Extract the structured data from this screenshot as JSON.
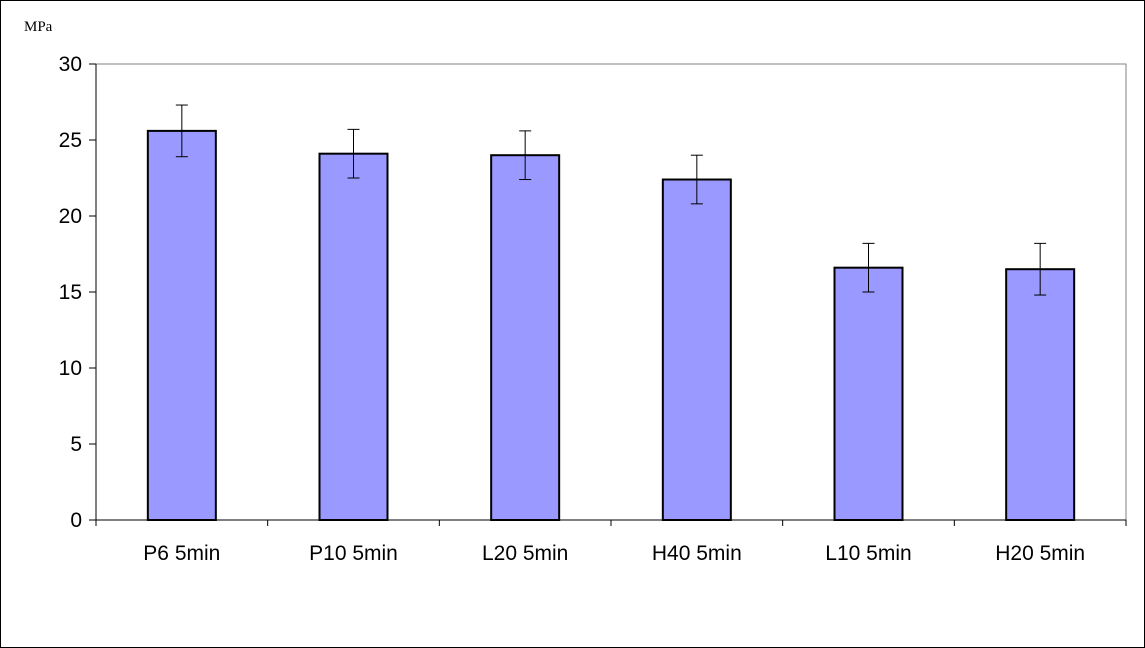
{
  "chart_data": {
    "type": "bar",
    "title": "",
    "xlabel": "",
    "ylabel": "MPa",
    "ylim": [
      0,
      30
    ],
    "yticks": [
      0,
      5,
      10,
      15,
      20,
      25,
      30
    ],
    "categories": [
      "P6 5min",
      "P10 5min",
      "L20 5min",
      "H40 5min",
      "L10 5min",
      "H20 5min"
    ],
    "values": [
      25.6,
      24.1,
      24.0,
      22.4,
      16.6,
      16.5
    ],
    "error": [
      1.7,
      1.6,
      1.6,
      1.6,
      1.6,
      1.7
    ],
    "grid": false,
    "legend": "none",
    "colors": {
      "bar_fill": "#9999ff",
      "bar_stroke": "#000000",
      "plot_border": "#808080"
    }
  }
}
